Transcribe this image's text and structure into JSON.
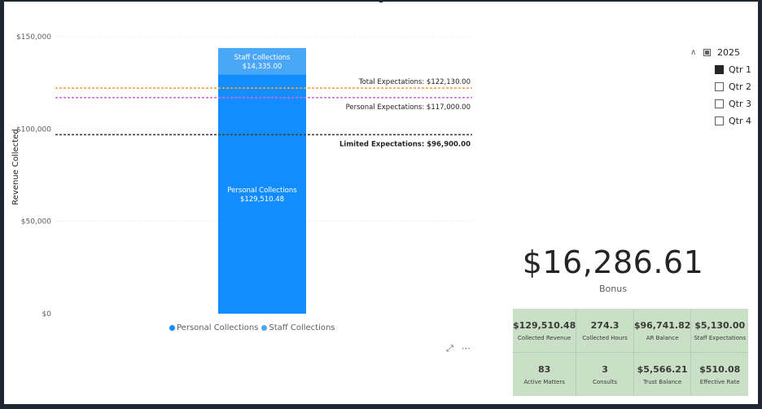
{
  "chart_data": {
    "type": "bar",
    "stacked": true,
    "categories": [
      ""
    ],
    "series": [
      {
        "name": "Personal Collections",
        "values": [
          129510.48
        ],
        "color": "#118dff",
        "label_text": "Personal Collections",
        "value_text": "$129,510.48"
      },
      {
        "name": "Staff Collections",
        "values": [
          14335.0
        ],
        "color": "#4aa7f7",
        "label_text": "Staff Collections",
        "value_text": "$14,335.00"
      }
    ],
    "reference_lines": [
      {
        "label": "Total Expectations: $122,130.00",
        "value": 122130,
        "color": "#f2a04a",
        "bold": false
      },
      {
        "label": "Personal Expectations: $117,000.00",
        "value": 117000,
        "color": "#c86fd6",
        "bold": false
      },
      {
        "label": "Limited Expectations: $96,900.00",
        "value": 96900,
        "color": "#444444",
        "bold": true
      }
    ],
    "ylabel": "Revenue Collected",
    "ylim": [
      0,
      150000
    ],
    "y_ticks": [
      0,
      50000,
      100000,
      150000
    ],
    "y_tick_labels": [
      "$0",
      "$50,000",
      "$100,000",
      "$150,000"
    ],
    "grid": true,
    "legend_position": "bottom"
  },
  "legend": [
    {
      "label": "Personal Collections",
      "color": "#118dff"
    },
    {
      "label": "Staff Collections",
      "color": "#4aa7f7"
    }
  ],
  "visual_icons": {
    "focus": "focus-mode-icon",
    "more": "more-options-icon",
    "more_glyph": "⋯",
    "focus_glyph": "⤢"
  },
  "slicer": {
    "year": "2025",
    "year_state": "partial",
    "quarters": [
      {
        "label": "Qtr 1",
        "checked": true
      },
      {
        "label": "Qtr 2",
        "checked": false
      },
      {
        "label": "Qtr 3",
        "checked": false
      },
      {
        "label": "Qtr 4",
        "checked": false
      }
    ]
  },
  "bonus": {
    "value": "$16,286.61",
    "label": "Bonus"
  },
  "cards": [
    {
      "value": "$129,510.48",
      "label": "Collected Revenue"
    },
    {
      "value": "274.3",
      "label": "Collected Hours"
    },
    {
      "value": "$96,741.82",
      "label": "AR Balance"
    },
    {
      "value": "$5,130.00",
      "label": "Staff Expectations"
    },
    {
      "value": "83",
      "label": "Active Matters"
    },
    {
      "value": "3",
      "label": "Consults"
    },
    {
      "value": "$5,566.21",
      "label": "Trust Balance"
    },
    {
      "value": "$510.08",
      "label": "Effective Rate"
    }
  ]
}
